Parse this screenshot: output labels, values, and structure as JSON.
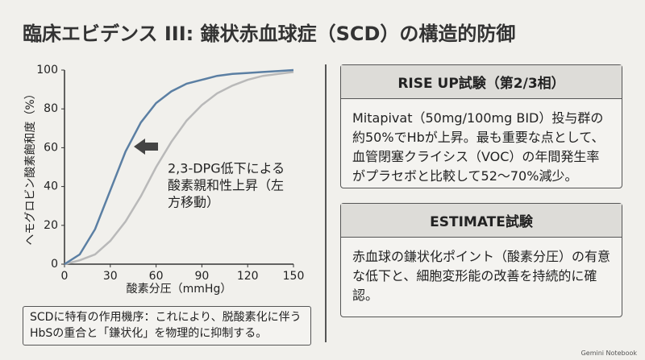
{
  "title": "臨床エビデンス III: 鎌状赤血球症（SCD）の構造的防御",
  "chart_data": {
    "type": "line",
    "x": [
      0,
      10,
      20,
      30,
      40,
      50,
      60,
      70,
      80,
      90,
      100,
      110,
      120,
      130,
      140,
      150
    ],
    "series": [
      {
        "color": "#5b7fa3",
        "values": [
          0,
          5,
          18,
          38,
          58,
          73,
          83,
          89,
          93,
          95,
          97,
          98,
          98.5,
          99,
          99.5,
          100
        ]
      },
      {
        "color": "#b9b9b9",
        "values": [
          0,
          2,
          5,
          12,
          22,
          35,
          50,
          63,
          74,
          82,
          88,
          92,
          95,
          97,
          98,
          99
        ]
      }
    ],
    "xlim": [
      0,
      150
    ],
    "xticks": [
      0,
      30,
      60,
      90,
      120,
      150
    ],
    "ylim": [
      0,
      100
    ],
    "yticks": [
      0,
      20,
      40,
      60,
      80,
      100
    ],
    "grid": false,
    "xlabel": "酸素分圧（mmHg）",
    "ylabel": "ヘモグロビン酸素飽和度（%）",
    "annotation": [
      "2,3-DPG低下による",
      "酸素親和性上昇（左",
      "方移動）"
    ]
  },
  "note": "SCDに特有の作用機序：これにより、脱酸素化に伴うHbSの重合と「鎌状化」を物理的に抑制する。",
  "boxes": [
    {
      "header": "RISE UP試験（第2/3相）",
      "body": "Mitapivat（50mg/100mg BID）投与群の約50%でHbが上昇。最も重要な点として、血管閉塞クライシス（VOC）の年間発生率がプラセボと比較して52〜70%減少。"
    },
    {
      "header": "ESTIMATE試験",
      "body": "赤血球の鎌状化ポイント（酸素分圧）の有意な低下と、細胞変形能の改善を持続的に確認。"
    }
  ],
  "footer": "Gemini Notebook"
}
